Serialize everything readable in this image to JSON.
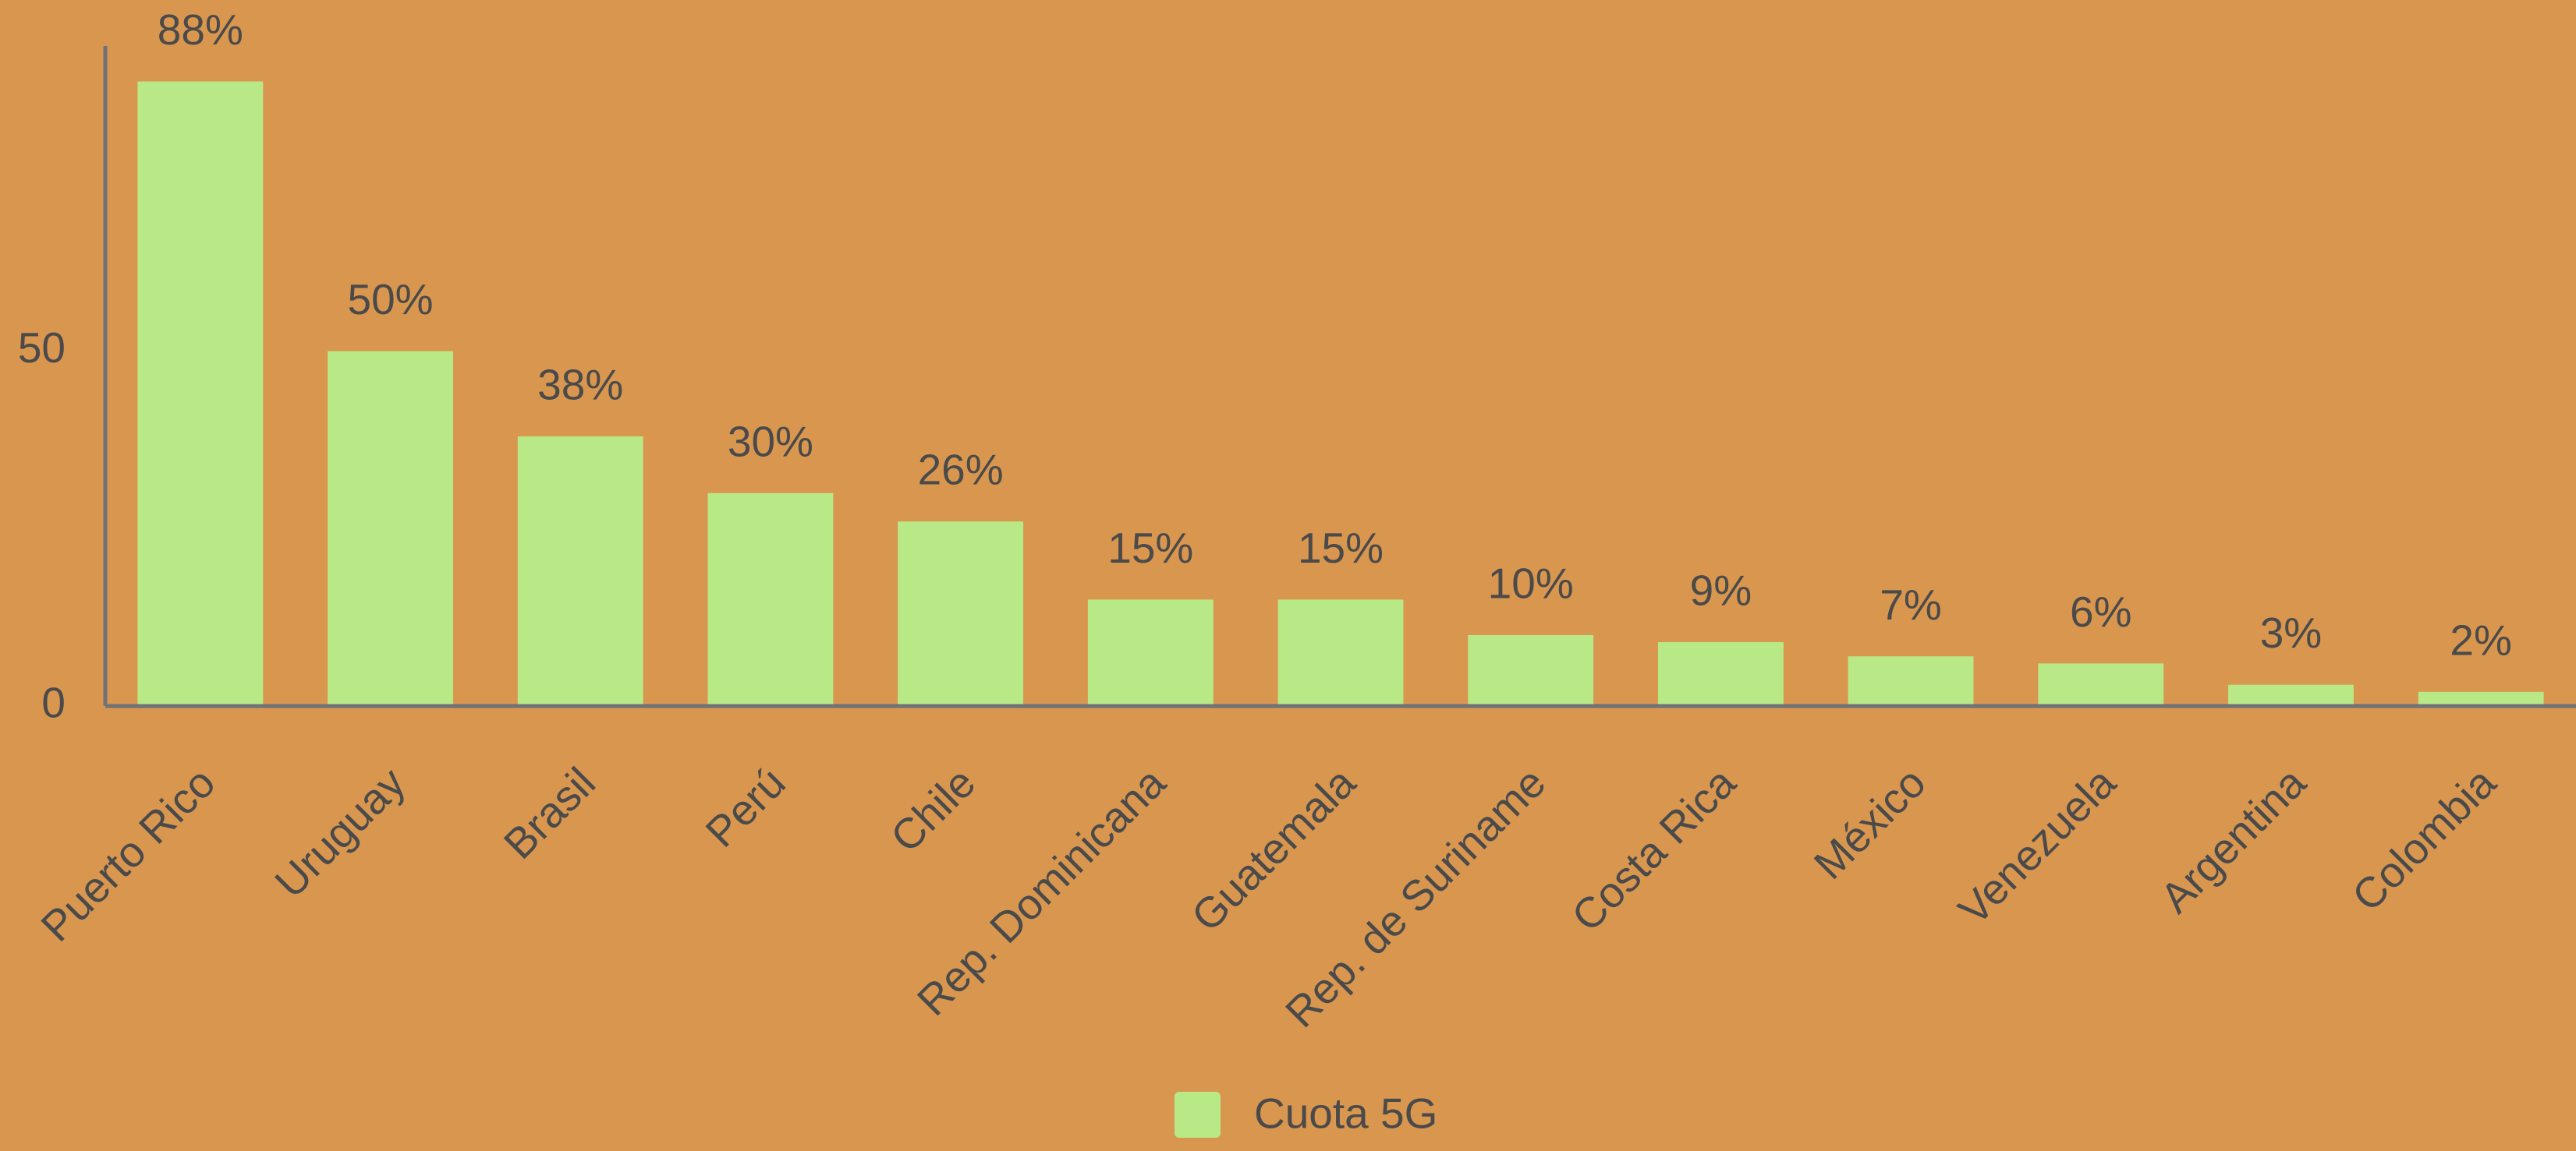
{
  "chart_data": {
    "type": "bar",
    "categories": [
      "Puerto Rico",
      "Uruguay",
      "Brasil",
      "Perú",
      "Chile",
      "Rep. Dominicana",
      "Guatemala",
      "Rep. de Suriname",
      "Costa Rica",
      "México",
      "Venezuela",
      "Argentina",
      "Colombia"
    ],
    "series": [
      {
        "name": "Cuota 5G",
        "color": "#b9e986",
        "values": [
          88,
          50,
          38,
          30,
          26,
          15,
          15,
          10,
          9,
          7,
          6,
          3,
          2
        ],
        "value_labels": [
          "88%",
          "50%",
          "38%",
          "30%",
          "26%",
          "15%",
          "15%",
          "10%",
          "9%",
          "7%",
          "6%",
          "3%",
          "2%"
        ]
      }
    ],
    "ylim": [
      0,
      93
    ],
    "yticks": [
      0,
      50
    ],
    "grid": false
  }
}
